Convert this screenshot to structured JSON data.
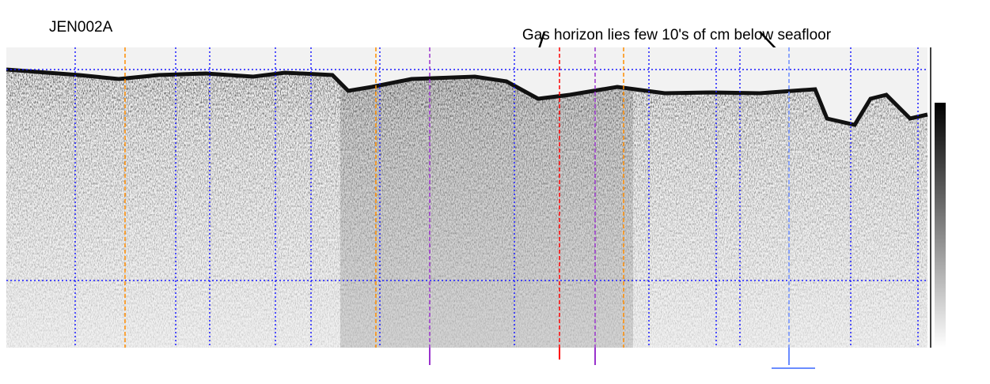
{
  "title": "JEN002A",
  "annotation": "Gas horizon lies few 10's of cm below seafloor"
}
